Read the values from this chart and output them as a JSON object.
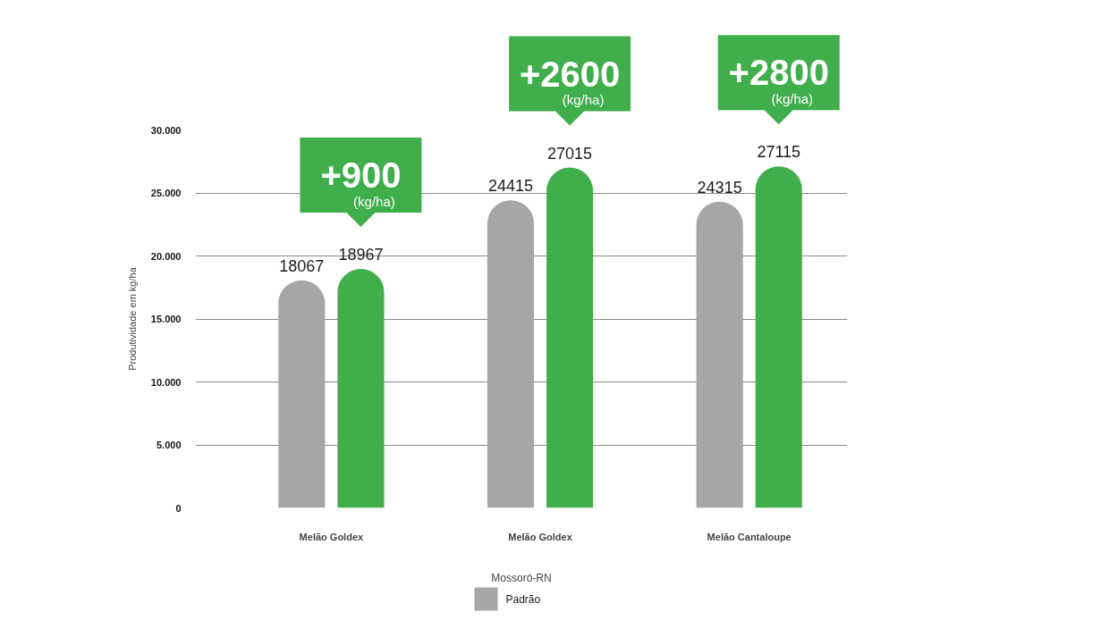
{
  "chart_data": {
    "type": "bar",
    "xlabel": "Mossoró-RN",
    "ylabel": "Produtividade em kg/ha",
    "categories": [
      "Melão Goldex",
      "Melão Goldex",
      "Melão Cantaloupe"
    ],
    "series": [
      {
        "name": "Padrão",
        "color": "#a6a6a6",
        "values": [
          18067,
          24415,
          24315
        ]
      },
      {
        "color": "#3fae4b",
        "values": [
          18967,
          27015,
          27115
        ]
      }
    ],
    "ylim": [
      0,
      30000
    ],
    "yticks": [
      0,
      {
        "value": 5000,
        "label": "5.000"
      },
      {
        "value": 10000,
        "label": "10.000"
      },
      {
        "value": 15000,
        "label": "15.000"
      },
      {
        "value": 20000,
        "label": "20.000"
      },
      {
        "value": 25000,
        "label": "25.000"
      },
      {
        "value": 30000,
        "label": "30.000"
      }
    ],
    "grid": "y",
    "legend": "bottom",
    "data_labels": true,
    "annotations": [
      "+900 (kg/ha)",
      "+2600 (kg/ha)",
      "+2800 (kg/ha)"
    ]
  }
}
